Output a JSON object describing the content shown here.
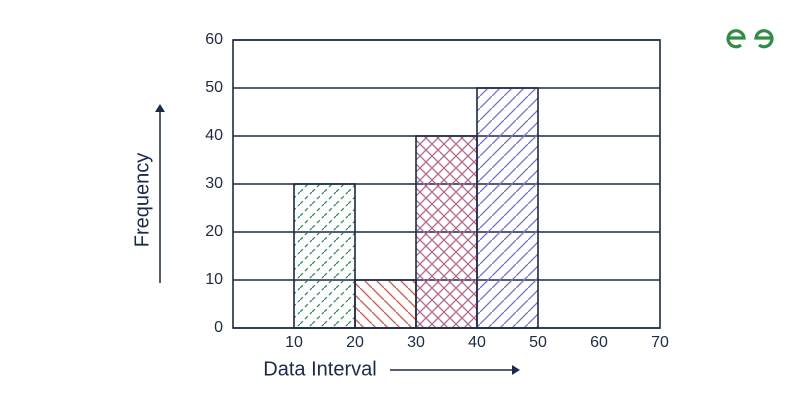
{
  "chart_data": {
    "type": "histogram",
    "xlabel": "Data Interval",
    "ylabel": "Frequency",
    "bins": [
      10,
      20,
      30,
      40,
      50
    ],
    "counts": [
      30,
      10,
      40,
      50
    ],
    "colors": [
      "#2e8b57",
      "#e0503c",
      "#b8648a",
      "#6f6fd8"
    ],
    "hatches": [
      "dashed-diagonal",
      "back-diagonal",
      "cross",
      "diagonal"
    ],
    "xlim": [
      0,
      70
    ],
    "xticks": [
      10,
      20,
      30,
      40,
      50,
      60,
      70
    ],
    "ylim": [
      0,
      60
    ],
    "yticks": [
      0,
      10,
      20,
      30,
      40,
      50,
      60
    ],
    "grid": true
  }
}
